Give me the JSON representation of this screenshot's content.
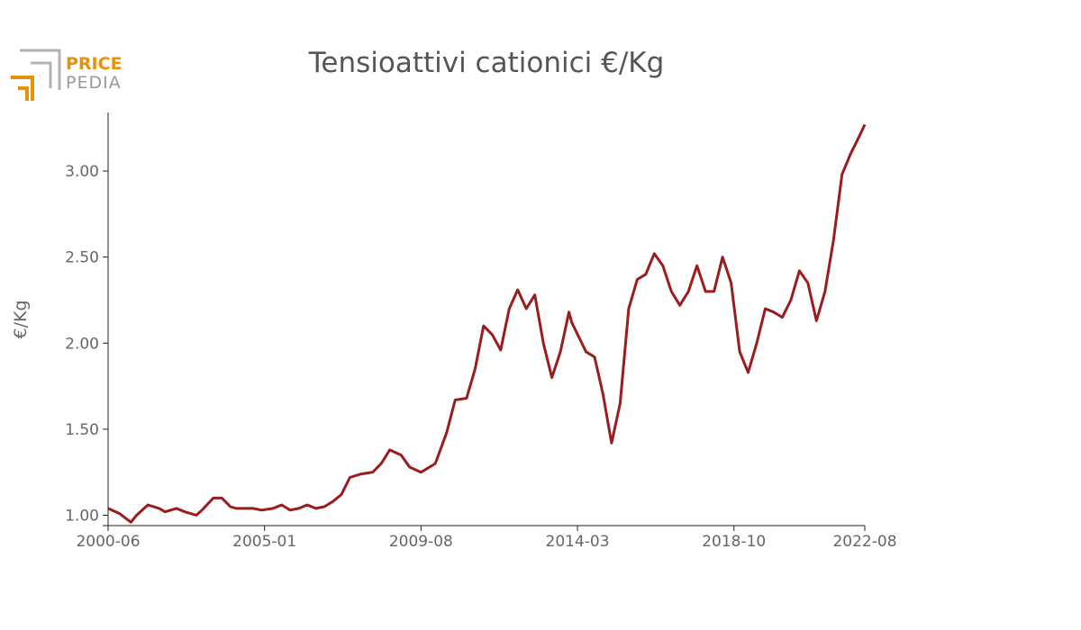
{
  "logo": {
    "line1": "PRICE",
    "line2": "PEDIA"
  },
  "chart_data": {
    "type": "line",
    "title": "Tensioattivi cationici €/Kg",
    "xlabel": "",
    "ylabel": "€/Kg",
    "x_ticks": [
      "2000-06",
      "2005-01",
      "2009-08",
      "2014-03",
      "2018-10",
      "2022-08"
    ],
    "y_ticks": [
      "1.00",
      "1.50",
      "2.00",
      "2.50",
      "3.00"
    ],
    "xlim": [
      "2000-06",
      "2022-08"
    ],
    "ylim": [
      0.94,
      3.34
    ],
    "line_color": "#9b1c1f",
    "grid": false,
    "series": [
      {
        "x": [
          "2000-06",
          "2000-10",
          "2001-02",
          "2001-04",
          "2001-08",
          "2001-12",
          "2002-02",
          "2002-06",
          "2002-09",
          "2003-01",
          "2003-03",
          "2003-07",
          "2003-10",
          "2004-01",
          "2004-03",
          "2004-06",
          "2004-09",
          "2004-12",
          "2005-04",
          "2005-07",
          "2005-10",
          "2006-01",
          "2006-04",
          "2006-07",
          "2006-10",
          "2007-01",
          "2007-04",
          "2007-07",
          "2007-11",
          "2008-03",
          "2008-06",
          "2008-09",
          "2009-01",
          "2009-04",
          "2009-08",
          "2010-01",
          "2010-05",
          "2010-08",
          "2010-12",
          "2011-03",
          "2011-06",
          "2011-09",
          "2011-12",
          "2012-03",
          "2012-06",
          "2012-09",
          "2012-12",
          "2013-03",
          "2013-06",
          "2013-09",
          "2013-12",
          "2014-01",
          "2014-06",
          "2014-09",
          "2014-12",
          "2015-03",
          "2015-06",
          "2015-09",
          "2015-12",
          "2016-03",
          "2016-06",
          "2016-09",
          "2016-12",
          "2017-03",
          "2017-06",
          "2017-09",
          "2017-12",
          "2018-03",
          "2018-06",
          "2018-09",
          "2018-12",
          "2019-03",
          "2019-06",
          "2019-09",
          "2019-12",
          "2020-03",
          "2020-06",
          "2020-09",
          "2020-12",
          "2021-03",
          "2021-06",
          "2021-09",
          "2021-12",
          "2022-03",
          "2022-06",
          "2022-08"
        ],
        "y": [
          1.04,
          1.01,
          0.96,
          1.0,
          1.06,
          1.04,
          1.02,
          1.04,
          1.02,
          1.0,
          1.03,
          1.1,
          1.1,
          1.05,
          1.04,
          1.04,
          1.04,
          1.03,
          1.04,
          1.06,
          1.03,
          1.04,
          1.06,
          1.04,
          1.05,
          1.08,
          1.12,
          1.22,
          1.24,
          1.25,
          1.3,
          1.38,
          1.35,
          1.28,
          1.25,
          1.3,
          1.48,
          1.67,
          1.68,
          1.85,
          2.1,
          2.05,
          1.96,
          2.2,
          2.31,
          2.2,
          2.28,
          2.0,
          1.8,
          1.95,
          2.18,
          2.12,
          1.95,
          1.92,
          1.7,
          1.42,
          1.65,
          2.2,
          2.37,
          2.4,
          2.52,
          2.45,
          2.3,
          2.22,
          2.3,
          2.45,
          2.3,
          2.3,
          2.5,
          2.35,
          1.95,
          1.83,
          2.0,
          2.2,
          2.18,
          2.15,
          2.25,
          2.42,
          2.35,
          2.13,
          2.3,
          2.6,
          2.98,
          3.1,
          3.2,
          3.27
        ]
      }
    ]
  }
}
